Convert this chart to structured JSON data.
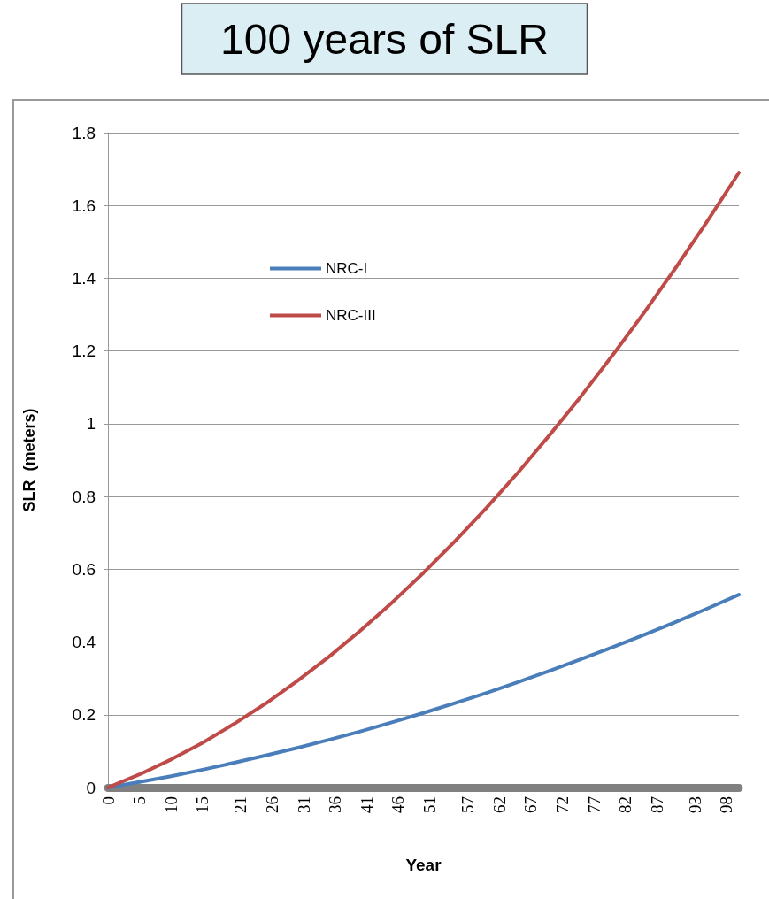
{
  "chart_data": {
    "type": "line",
    "title": "100 years of SLR",
    "xlabel": "Year",
    "ylabel": "SLR  (meters)",
    "x": [
      0,
      5,
      10,
      15,
      20,
      25,
      30,
      35,
      40,
      45,
      50,
      55,
      60,
      65,
      70,
      75,
      80,
      85,
      90,
      95,
      100
    ],
    "series": [
      {
        "name": "NRC-I",
        "color": "#4a7ebb",
        "values": [
          0,
          0.015,
          0.031,
          0.049,
          0.068,
          0.088,
          0.109,
          0.131,
          0.154,
          0.179,
          0.205,
          0.232,
          0.26,
          0.29,
          0.321,
          0.353,
          0.386,
          0.42,
          0.455,
          0.492,
          0.53
        ]
      },
      {
        "name": "NRC-III",
        "color": "#be4b48",
        "values": [
          0,
          0.036,
          0.077,
          0.123,
          0.175,
          0.231,
          0.293,
          0.359,
          0.431,
          0.508,
          0.59,
          0.677,
          0.769,
          0.866,
          0.969,
          1.076,
          1.189,
          1.306,
          1.429,
          1.557,
          1.69
        ]
      }
    ],
    "xlim": [
      0,
      100
    ],
    "xticks": [
      0,
      5,
      10,
      15,
      21,
      26,
      31,
      36,
      41,
      46,
      51,
      57,
      62,
      67,
      72,
      77,
      82,
      87,
      93,
      98
    ],
    "ylim": [
      0,
      1.8
    ],
    "yticks": [
      0,
      0.2,
      0.4,
      0.6,
      0.8,
      1,
      1.2,
      1.4,
      1.6,
      1.8
    ],
    "grid": "y",
    "legend": "top left",
    "marker": "none",
    "line_style": "solid"
  }
}
